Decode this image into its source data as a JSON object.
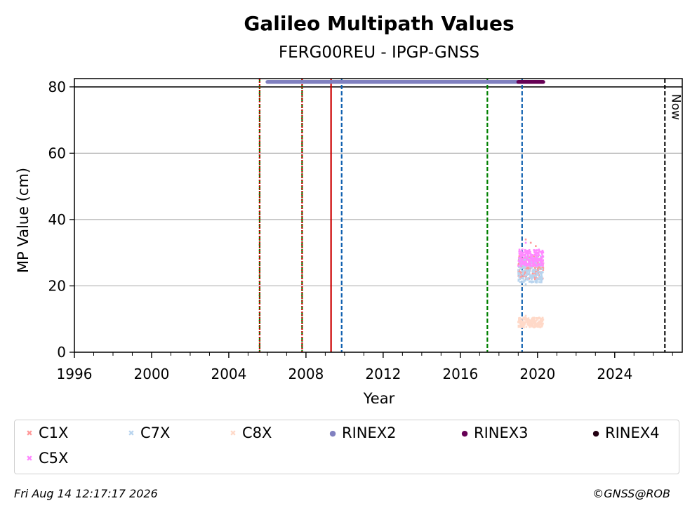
{
  "chart_data": {
    "type": "scatter",
    "title": "Galileo Multipath Values",
    "subtitle": "FERG00REU - IPGP-GNSS",
    "xlabel": "Year",
    "ylabel": "MP Value (cm)",
    "xlim": [
      1996,
      2027.5
    ],
    "ylim": [
      0,
      82.5
    ],
    "x_ticks": [
      1996,
      2000,
      2004,
      2008,
      2012,
      2016,
      2020,
      2024
    ],
    "y_ticks": [
      0,
      20,
      40,
      60,
      80
    ],
    "grid": "horizontal",
    "legend_position": "bottom",
    "reference_line_y": 80,
    "now_label": "Now",
    "now_year": 2026.6,
    "vertical_lines": [
      {
        "x": 2005.6,
        "color": "#008000",
        "style": "dashed"
      },
      {
        "x": 2005.6,
        "color": "#cc0000",
        "style": "dotted"
      },
      {
        "x": 2007.8,
        "color": "#008000",
        "style": "dashed"
      },
      {
        "x": 2007.8,
        "color": "#cc0000",
        "style": "dotted"
      },
      {
        "x": 2009.3,
        "color": "#cc0000",
        "style": "solid"
      },
      {
        "x": 2009.85,
        "color": "#1060b0",
        "style": "dashed"
      },
      {
        "x": 2017.4,
        "color": "#008000",
        "style": "dashed"
      },
      {
        "x": 2019.2,
        "color": "#1060b0",
        "style": "dashed"
      }
    ],
    "series": [
      {
        "name": "C1X",
        "color": "#ff9999",
        "marker": "x",
        "x_range": [
          2019.0,
          2020.3
        ],
        "y_range": [
          22,
          29
        ],
        "y_outliers": [
          34,
          33,
          32
        ]
      },
      {
        "name": "C7X",
        "color": "#b8d4ee",
        "marker": "x",
        "x_range": [
          2019.0,
          2020.3
        ],
        "y_range": [
          21,
          29
        ],
        "y_outliers": [
          20.5
        ]
      },
      {
        "name": "C8X",
        "color": "#ffd9c8",
        "marker": "x",
        "x_range": [
          2019.0,
          2020.3
        ],
        "y_range": [
          7.5,
          10.5
        ],
        "y_outliers": [
          11
        ]
      },
      {
        "name": "RINEX2",
        "color": "#8080c0",
        "marker": "o",
        "x_range": [
          2006.0,
          2019.0
        ],
        "y": 81.5
      },
      {
        "name": "RINEX3",
        "color": "#660055",
        "marker": "o",
        "x_range": [
          2019.0,
          2020.3
        ],
        "y": 81.5
      },
      {
        "name": "RINEX4",
        "color": "#220011",
        "marker": "o"
      },
      {
        "name": "C5X",
        "color": "#ff88ff",
        "marker": "x",
        "x_range": [
          2019.0,
          2020.3
        ],
        "y_range": [
          26,
          31
        ],
        "y_outliers": [
          33
        ]
      }
    ]
  },
  "footer": {
    "timestamp": "Fri Aug 14 12:17:17 2026",
    "credit": "©GNSS@ROB"
  }
}
